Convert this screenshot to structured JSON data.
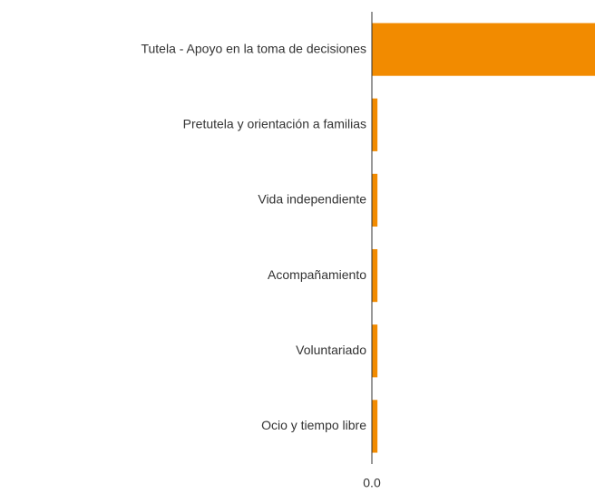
{
  "chart_data": {
    "type": "bar",
    "orientation": "horizontal",
    "categories": [
      "Tutela - Apoyo en la toma de decisiones",
      "Pretutela y orientación a familias",
      "Vida independiente",
      "Acompañamiento",
      "Voluntariado",
      "Ocio y tiempo libre"
    ],
    "values": [
      40,
      1,
      1,
      1,
      1,
      1
    ],
    "color": "#f28b00",
    "xlim": [
      0,
      40
    ],
    "xticks": [
      {
        "value": 0,
        "label": "0.0"
      }
    ]
  }
}
